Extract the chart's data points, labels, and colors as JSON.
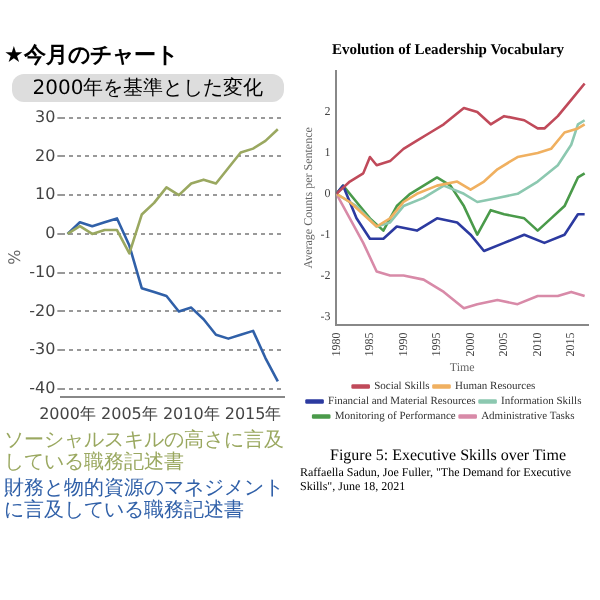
{
  "chart_data": [
    {
      "type": "line",
      "title": "★今月のチャート",
      "subtitle": "2000年を基準とした変化",
      "ylabel": "%",
      "xlim": [
        1999.5,
        2017.5
      ],
      "ylim": [
        -42,
        30
      ],
      "xticks": [
        {
          "value": 2000,
          "label": "2000年"
        },
        {
          "value": 2005,
          "label": "2005年"
        },
        {
          "value": 2010,
          "label": "2010年"
        },
        {
          "value": 2015,
          "label": "2015年"
        }
      ],
      "yticks": [
        -40,
        -30,
        -20,
        -10,
        0,
        10,
        20,
        30
      ],
      "grid": "y",
      "x": [
        2000,
        2001,
        2002,
        2003,
        2004,
        2005,
        2006,
        2007,
        2008,
        2009,
        2010,
        2011,
        2012,
        2013,
        2014,
        2015,
        2016,
        2017
      ],
      "series": [
        {
          "name": "ソーシャルスキルの高さに言及している職務記述書",
          "color": "#9aa860",
          "values": [
            0,
            2,
            0,
            1,
            1,
            -5,
            5,
            8,
            12,
            10,
            13,
            14,
            13,
            17,
            21,
            22,
            24,
            27
          ]
        },
        {
          "name": "財務と物的資源のマネジメントに言及している職務記述書",
          "color": "#3060a8",
          "values": [
            0,
            3,
            2,
            3,
            4,
            -3,
            -14,
            -15,
            -16,
            -20,
            -19,
            -22,
            -26,
            -27,
            -26,
            -25,
            -32,
            -38
          ]
        }
      ]
    },
    {
      "type": "line",
      "title": "Evolution of Leadership Vocabulary",
      "xlabel": "Time",
      "ylabel": "Average Counts per Sentence",
      "xlim": [
        1980,
        2017.5
      ],
      "ylim": [
        -3.2,
        3
      ],
      "xticks": [
        1980,
        1985,
        1990,
        1995,
        2000,
        2005,
        2010,
        2015
      ],
      "yticks": [
        -3,
        -2,
        -1,
        0,
        1,
        2
      ],
      "legend": "bottom",
      "annotations": [
        "Figure 5: Executive Skills over Time",
        "Raffaella Sadun, Joe Fuller, \"The Demand for Executive Skills\", June 18, 2021"
      ],
      "series": [
        {
          "name": "Social Skills",
          "color": "#c04a5a",
          "x": [
            1980,
            1982,
            1984,
            1985,
            1986,
            1988,
            1990,
            1992,
            1994,
            1996,
            1999,
            2001,
            2003,
            2005,
            2008,
            2010,
            2011,
            2013,
            2015,
            2017
          ],
          "values": [
            0,
            0.3,
            0.5,
            0.9,
            0.7,
            0.8,
            1.1,
            1.3,
            1.5,
            1.7,
            2.1,
            2.0,
            1.7,
            1.9,
            1.8,
            1.6,
            1.6,
            1.9,
            2.3,
            2.7
          ]
        },
        {
          "name": "Human Resources",
          "color": "#f0b060",
          "x": [
            1980,
            1982,
            1984,
            1986,
            1988,
            1990,
            1992,
            1995,
            1998,
            2000,
            2002,
            2004,
            2007,
            2010,
            2012,
            2014,
            2016,
            2017
          ],
          "values": [
            0,
            -0.2,
            -0.5,
            -0.8,
            -0.6,
            -0.2,
            0,
            0.2,
            0.3,
            0.1,
            0.3,
            0.6,
            0.9,
            1.0,
            1.1,
            1.5,
            1.6,
            1.7
          ]
        },
        {
          "name": "Financial and Material Resources",
          "color": "#2c3aa0",
          "x": [
            1980,
            1981,
            1983,
            1985,
            1987,
            1989,
            1992,
            1995,
            1998,
            2000,
            2002,
            2005,
            2008,
            2011,
            2014,
            2016,
            2017
          ],
          "values": [
            0,
            0.2,
            -0.6,
            -1.1,
            -1.1,
            -0.8,
            -0.9,
            -0.6,
            -0.7,
            -1.0,
            -1.4,
            -1.2,
            -1.0,
            -1.2,
            -1.0,
            -0.5,
            -0.5
          ]
        },
        {
          "name": "Information Skills",
          "color": "#8cc8b0",
          "x": [
            1980,
            1983,
            1986,
            1988,
            1990,
            1993,
            1996,
            1999,
            2001,
            2004,
            2007,
            2010,
            2013,
            2015,
            2016,
            2017
          ],
          "values": [
            0,
            -0.3,
            -0.8,
            -0.7,
            -0.3,
            -0.1,
            0.2,
            0,
            -0.2,
            -0.1,
            0,
            0.3,
            0.7,
            1.2,
            1.7,
            1.8
          ]
        },
        {
          "name": "Monitoring of Performance",
          "color": "#4a9a4a",
          "x": [
            1980,
            1981,
            1983,
            1985,
            1987,
            1989,
            1991,
            1993,
            1995,
            1997,
            1999,
            2001,
            2003,
            2005,
            2008,
            2010,
            2012,
            2014,
            2016,
            2017
          ],
          "values": [
            0,
            0.2,
            -0.2,
            -0.6,
            -0.9,
            -0.3,
            0,
            0.2,
            0.4,
            0.2,
            -0.3,
            -1.0,
            -0.4,
            -0.5,
            -0.6,
            -0.9,
            -0.6,
            -0.3,
            0.4,
            0.5
          ]
        },
        {
          "name": "Administrative Tasks",
          "color": "#d88aa8",
          "x": [
            1980,
            1982,
            1984,
            1986,
            1988,
            1990,
            1993,
            1996,
            1999,
            2001,
            2004,
            2007,
            2010,
            2013,
            2015,
            2017
          ],
          "values": [
            0,
            -0.6,
            -1.2,
            -1.9,
            -2.0,
            -2.0,
            -2.1,
            -2.4,
            -2.8,
            -2.7,
            -2.6,
            -2.7,
            -2.5,
            -2.5,
            -2.4,
            -2.5
          ]
        }
      ]
    }
  ]
}
